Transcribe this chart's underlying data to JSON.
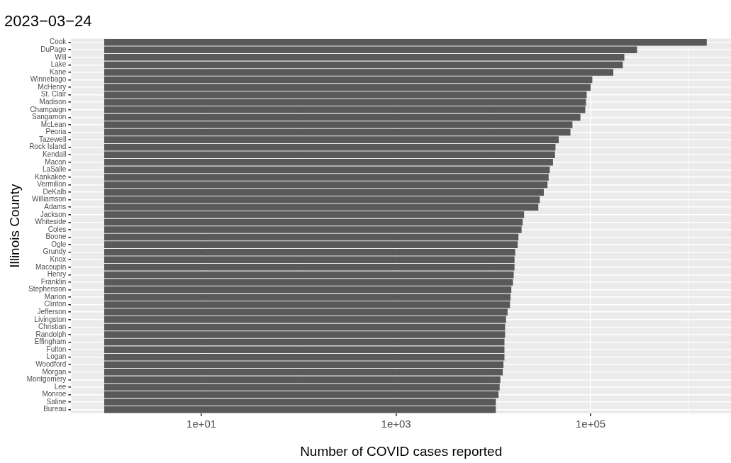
{
  "chart_data": {
    "type": "bar",
    "orientation": "horizontal",
    "title": "2023−03−24",
    "xlabel": "Number of COVID cases reported",
    "ylabel": "Illinois County",
    "categories": [
      "Cook",
      "DuPage",
      "Will",
      "Lake",
      "Kane",
      "Winnebago",
      "McHenry",
      "St. Clair",
      "Madison",
      "Champaign",
      "Sangamon",
      "McLean",
      "Peoria",
      "Tazewell",
      "Rock Island",
      "Kendall",
      "Macon",
      "LaSalle",
      "Kankakee",
      "Vermilion",
      "DeKalb",
      "Williamson",
      "Adams",
      "Jackson",
      "Whiteside",
      "Coles",
      "Boone",
      "Ogle",
      "Grundy",
      "Knox",
      "Macoupin",
      "Henry",
      "Franklin",
      "Stephenson",
      "Marion",
      "Clinton",
      "Jefferson",
      "Livingston",
      "Christian",
      "Randolph",
      "Effingham",
      "Fulton",
      "Logan",
      "Woodford",
      "Morgan",
      "Montgomery",
      "Lee",
      "Monroe",
      "Saline",
      "Bureau"
    ],
    "values": [
      1560000,
      300000,
      222000,
      214000,
      171000,
      104000,
      100000,
      91000,
      89600,
      88000,
      78500,
      65000,
      62000,
      47000,
      43500,
      43000,
      41000,
      38000,
      37000,
      36000,
      33000,
      30000,
      29000,
      20700,
      20000,
      19500,
      18100,
      17800,
      16800,
      16500,
      16500,
      16200,
      15900,
      15300,
      15000,
      14800,
      14000,
      13500,
      13200,
      13200,
      13000,
      13000,
      13000,
      12700,
      12500,
      11800,
      11600,
      11300,
      10600,
      10600
    ],
    "base": [
      1,
      1,
      1,
      1,
      1,
      1,
      1,
      1,
      1,
      1,
      1,
      1,
      1,
      1,
      1,
      1,
      1,
      1,
      1,
      1,
      1,
      1,
      1,
      1,
      1,
      1,
      1,
      1,
      1,
      1,
      1,
      1,
      1,
      1,
      1,
      1,
      1,
      1,
      1,
      1,
      1,
      1,
      1,
      1,
      1,
      1,
      1,
      1,
      1,
      1
    ],
    "color": "#595959",
    "log": "x",
    "xlim": [
      0.458,
      2770000
    ],
    "xticks": [
      {
        "value": 1,
        "label": null
      },
      {
        "value": 10,
        "label": "1e+01"
      },
      {
        "value": 100,
        "label": null
      },
      {
        "value": 1000,
        "label": "1e+03"
      },
      {
        "value": 10000,
        "label": null
      },
      {
        "value": 100000,
        "label": "1e+05"
      },
      {
        "value": 1000000,
        "label": null
      }
    ],
    "grid": true,
    "legend": false
  }
}
